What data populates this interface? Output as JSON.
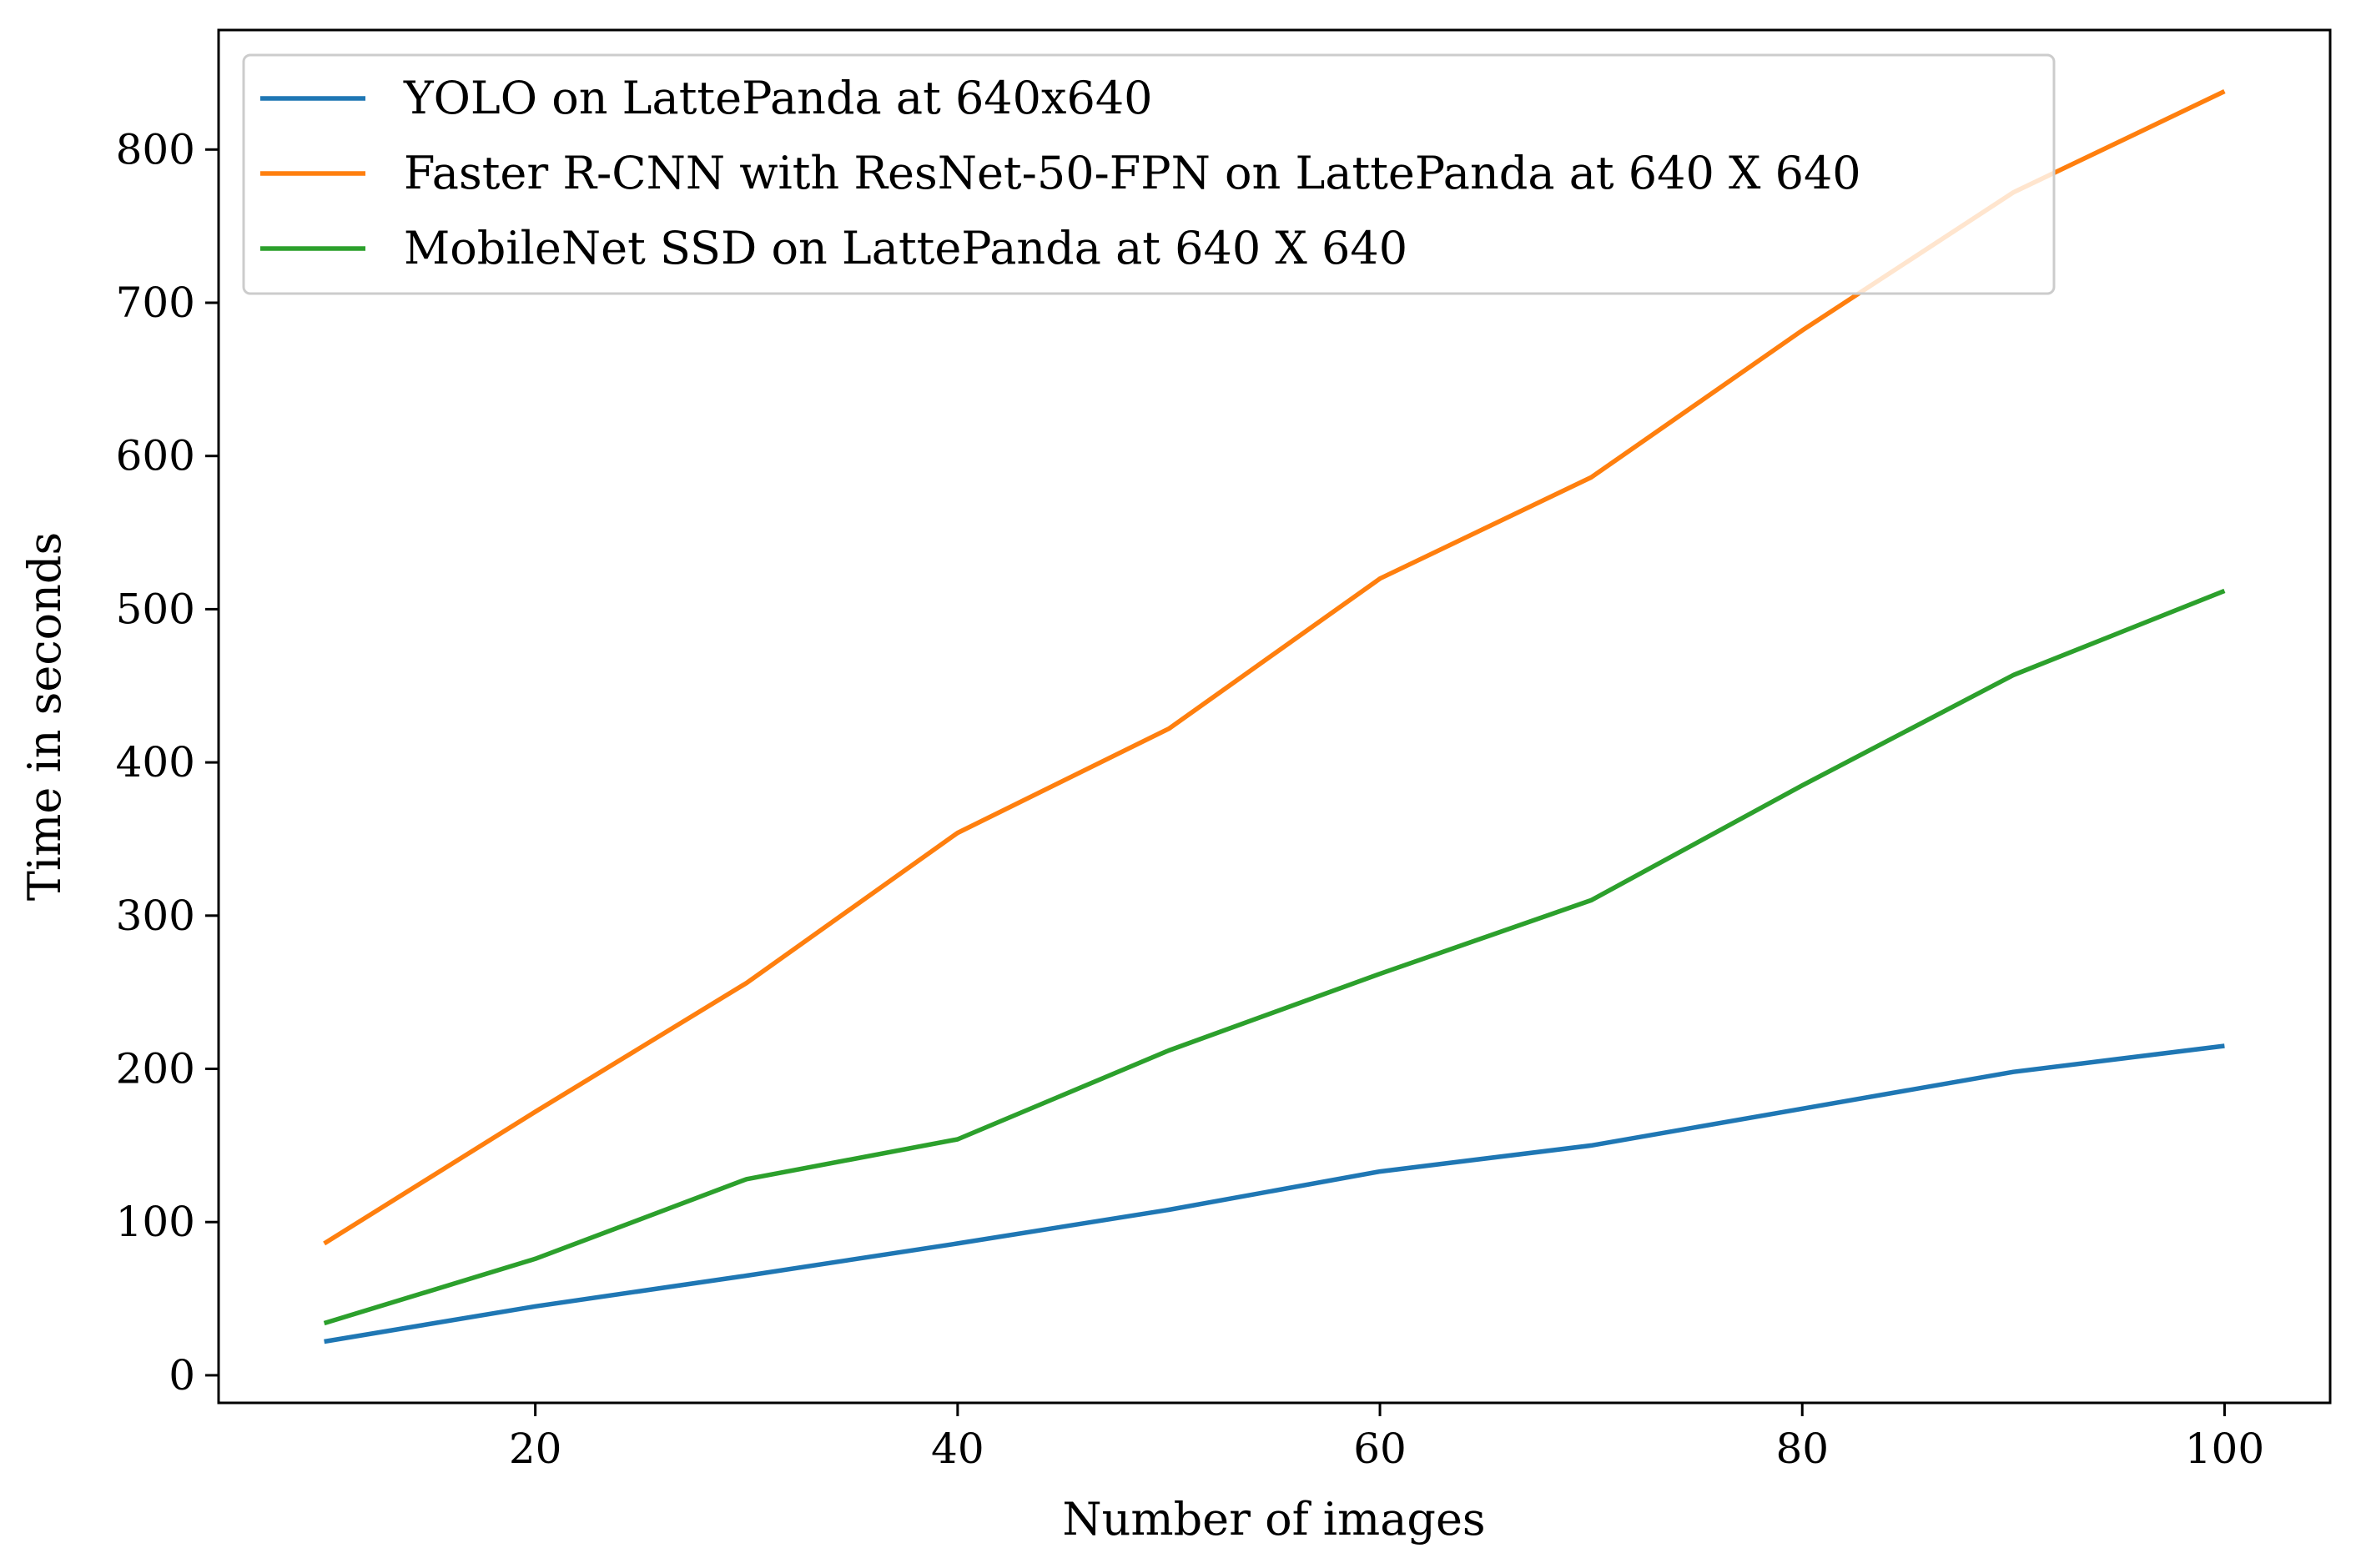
{
  "chart_data": {
    "type": "line",
    "title": "",
    "xlabel": "Number of images",
    "ylabel": "Time in seconds",
    "xlim": [
      5,
      105
    ],
    "ylim": [
      -18,
      878
    ],
    "xticks": [
      20,
      40,
      60,
      80,
      100
    ],
    "yticks": [
      0,
      100,
      200,
      300,
      400,
      500,
      600,
      700,
      800
    ],
    "grid": false,
    "legend_position": "upper-left",
    "x": [
      10,
      20,
      30,
      40,
      50,
      60,
      70,
      80,
      90,
      100
    ],
    "series": [
      {
        "name": "YOLO on LattePanda at 640x640",
        "color": "#1f77b4",
        "values": [
          22,
          45,
          65,
          86,
          108,
          133,
          150,
          174,
          198,
          215
        ]
      },
      {
        "name": "Faster R-CNN with ResNet-50-FPN on LattePanda at 640 X 640",
        "color": "#ff7f0e",
        "values": [
          86,
          172,
          256,
          354,
          422,
          520,
          586,
          682,
          772,
          838
        ]
      },
      {
        "name": "MobileNet SSD on LattePanda at 640 X 640",
        "color": "#2ca02c",
        "values": [
          34,
          76,
          128,
          154,
          212,
          262,
          310,
          385,
          457,
          512
        ]
      }
    ]
  }
}
